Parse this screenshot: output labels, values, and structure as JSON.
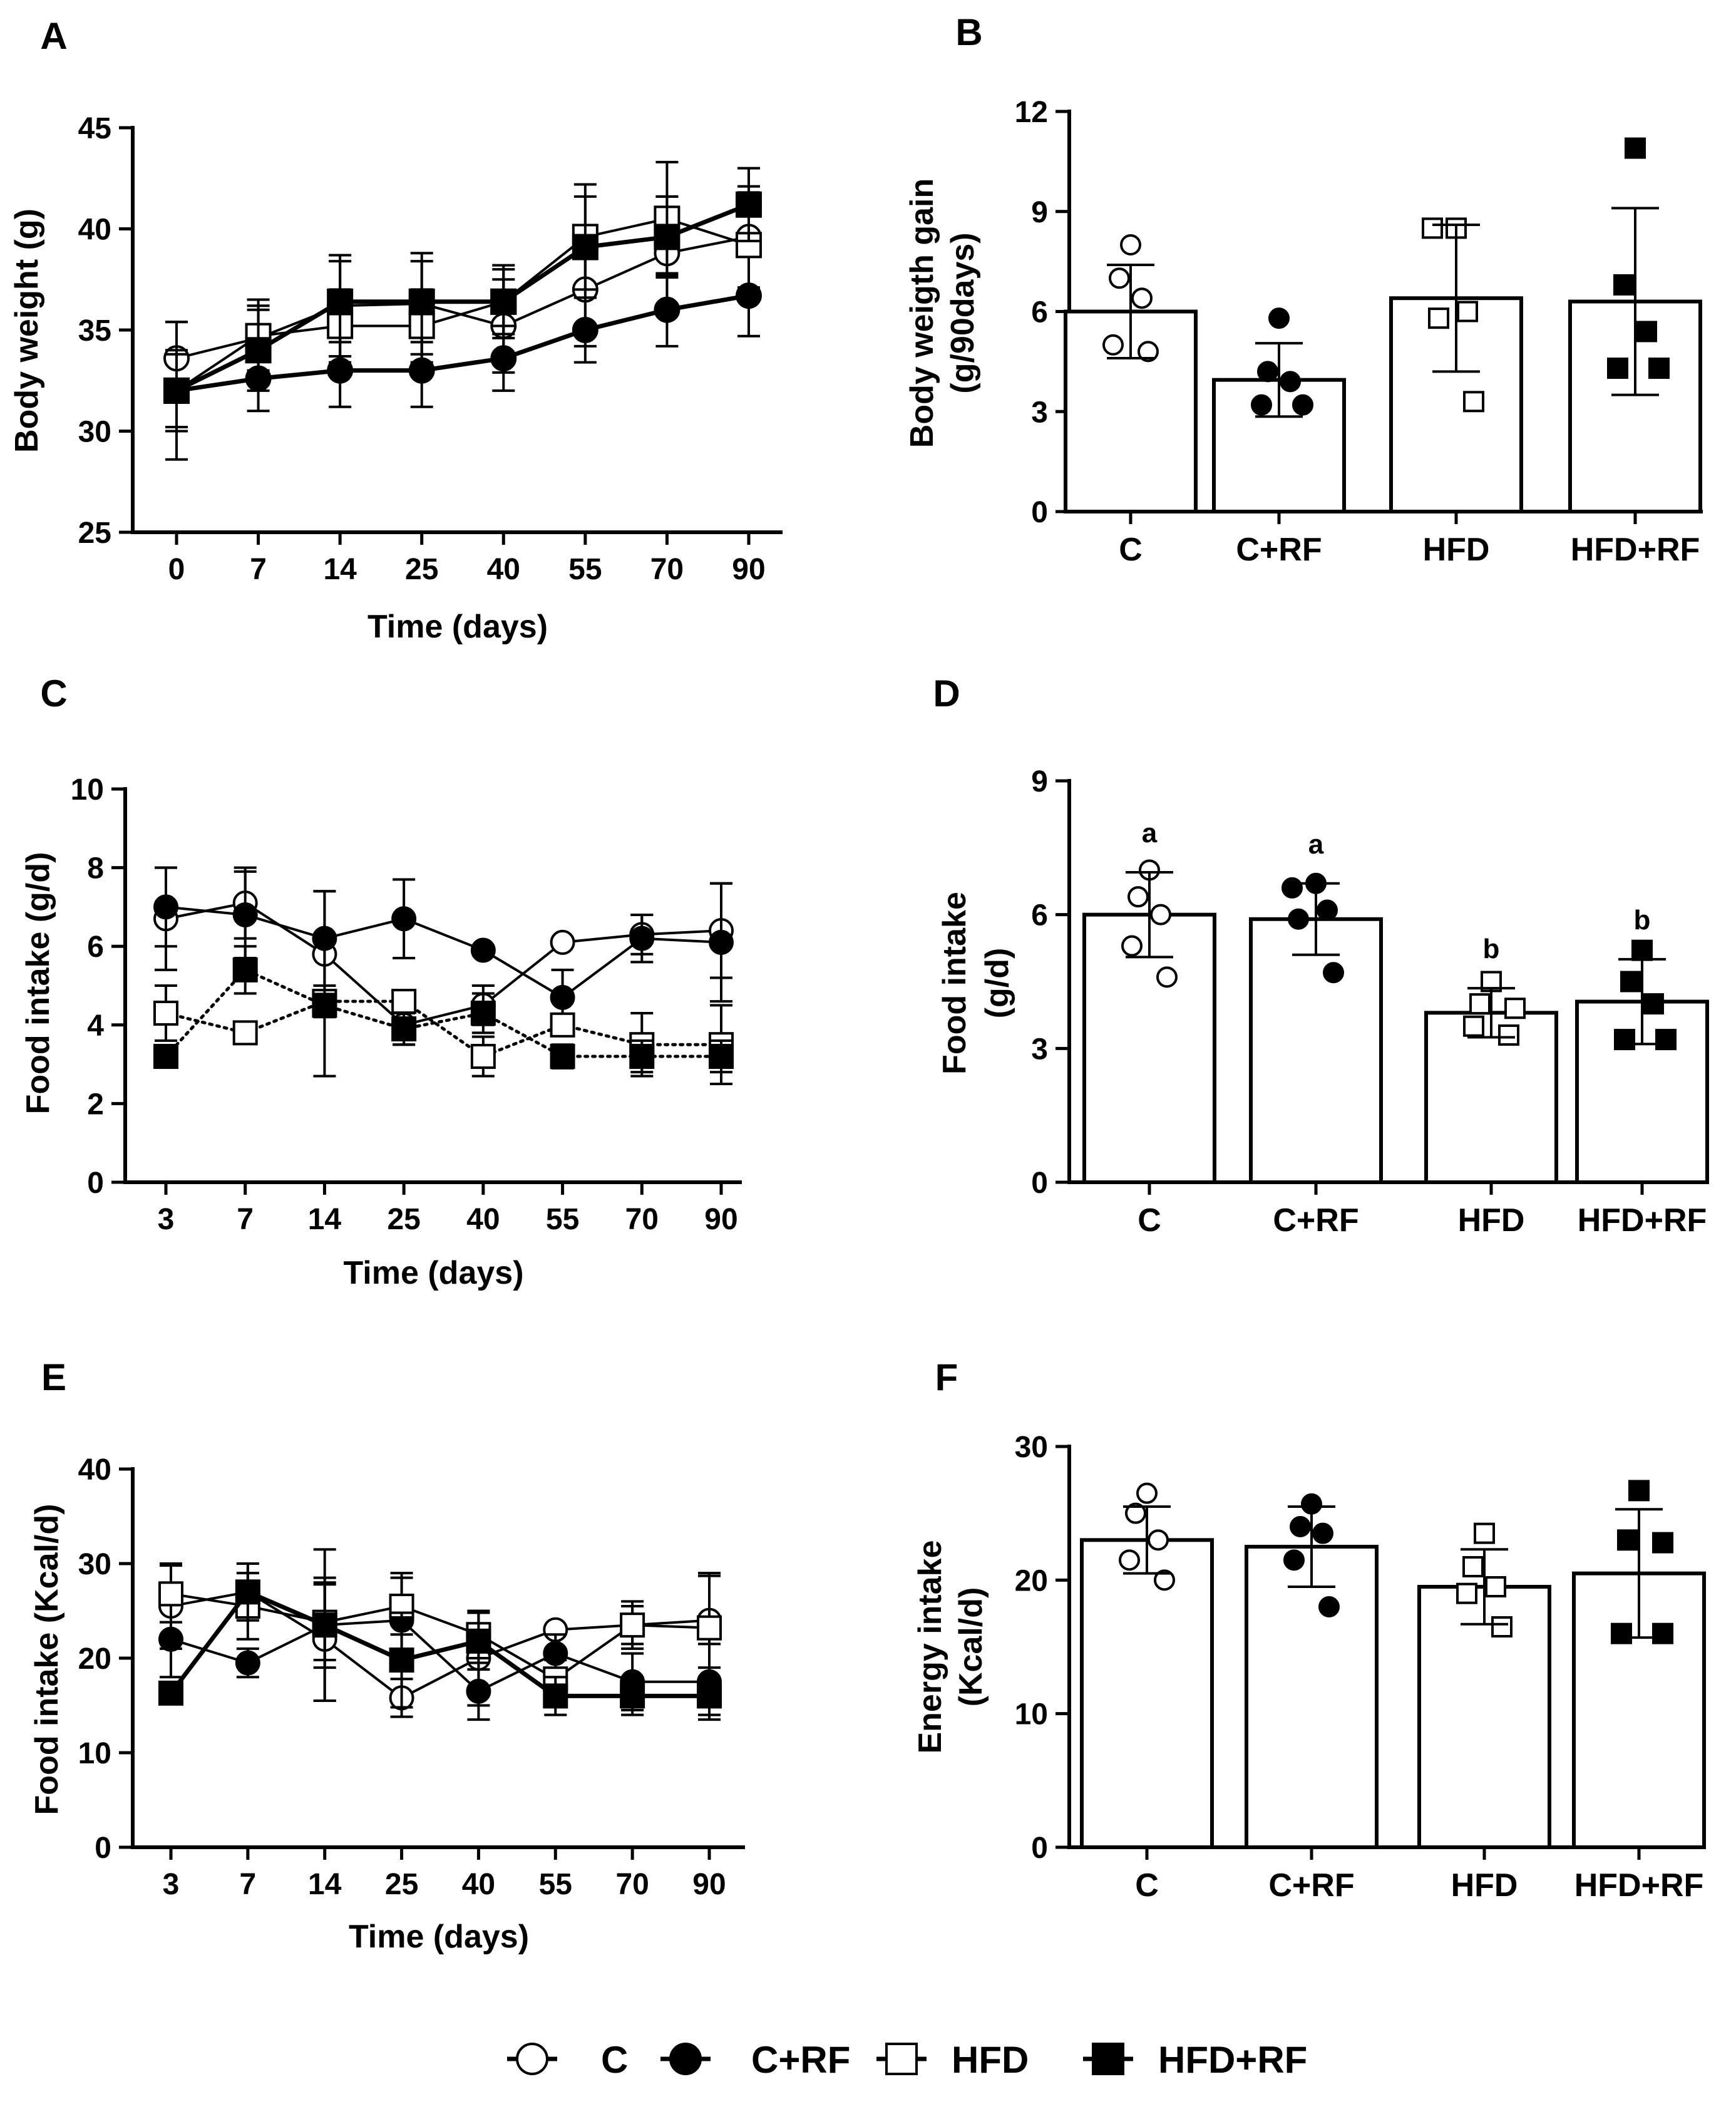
{
  "chart_data": [
    {
      "id": "A",
      "panel_label": "A",
      "type": "line",
      "ylabel": "Body weight (g)",
      "xlabel": "Time (days)",
      "categories": [
        "0",
        "7",
        "14",
        "25",
        "40",
        "55",
        "70",
        "90"
      ],
      "ylim": [
        25,
        45
      ],
      "yticks": [
        25,
        30,
        35,
        40,
        45
      ],
      "series": [
        {
          "name": "C",
          "marker": "circle-open",
          "line": "solid",
          "values": [
            33.6,
            34.6,
            36.2,
            36.3,
            35.2,
            37.0,
            38.8,
            39.6
          ],
          "err": [
            1.8,
            1.6,
            2.5,
            2.5,
            2.3,
            2.8,
            2.8,
            2.5
          ]
        },
        {
          "name": "C+RF",
          "marker": "circle-filled",
          "line": "solid-thick",
          "values": [
            32.0,
            32.6,
            33.0,
            33.0,
            33.6,
            35.0,
            36.0,
            36.7
          ],
          "err": [
            1.8,
            1.6,
            1.8,
            1.8,
            1.6,
            1.6,
            1.8,
            2.0
          ]
        },
        {
          "name": "HFD",
          "marker": "square-open",
          "line": "solid",
          "values": [
            32.0,
            34.7,
            35.2,
            35.2,
            36.4,
            39.6,
            40.5,
            39.2
          ],
          "err": [
            2.0,
            1.8,
            1.8,
            1.8,
            1.6,
            2.6,
            2.8,
            2.6
          ]
        },
        {
          "name": "HFD+RF",
          "marker": "square-filled",
          "line": "solid-thick",
          "values": [
            32.0,
            34.0,
            36.4,
            36.4,
            36.4,
            39.1,
            39.6,
            41.2
          ],
          "err": [
            3.4,
            2.0,
            2.0,
            2.0,
            1.8,
            2.5,
            2.0,
            1.8
          ]
        }
      ]
    },
    {
      "id": "B",
      "panel_label": "B",
      "type": "bar",
      "ylabel": [
        "Body weigth gain",
        "(g/90days)"
      ],
      "categories": [
        "C",
        "C+RF",
        "HFD",
        "HFD+RF"
      ],
      "ylim": [
        0,
        12
      ],
      "yticks": [
        0,
        3,
        6,
        9,
        12
      ],
      "values": [
        6.0,
        3.95,
        6.4,
        6.3
      ],
      "err": [
        1.4,
        1.1,
        2.2,
        2.8
      ],
      "markers": [
        "circle-open",
        "circle-filled",
        "square-open",
        "square-filled"
      ],
      "points": [
        [
          8.0,
          7.0,
          6.4,
          5.0,
          4.8
        ],
        [
          5.8,
          4.2,
          3.9,
          3.2,
          3.2
        ],
        [
          8.5,
          8.5,
          6.0,
          5.8,
          3.3
        ],
        [
          10.9,
          6.8,
          5.4,
          4.3,
          4.3
        ]
      ],
      "annotations": [
        "",
        "",
        "",
        ""
      ]
    },
    {
      "id": "C",
      "panel_label": "C",
      "type": "line",
      "ylabel": "Food intake (g/d)",
      "xlabel": "Time (days)",
      "categories": [
        "3",
        "7",
        "14",
        "25",
        "40",
        "55",
        "70",
        "90"
      ],
      "ylim": [
        0,
        10
      ],
      "yticks": [
        0,
        2,
        4,
        6,
        8,
        10
      ],
      "series": [
        {
          "name": "C",
          "marker": "circle-open",
          "line": "solid",
          "values": [
            6.7,
            7.1,
            5.8,
            4.0,
            4.5,
            6.1,
            6.3,
            6.4
          ],
          "err": [
            1.3,
            0.9,
            1.6,
            0.5,
            0.5,
            0.0,
            0.5,
            1.2
          ]
        },
        {
          "name": "C+RF",
          "marker": "circle-filled",
          "line": "solid",
          "values": [
            7.0,
            6.8,
            6.2,
            6.7,
            5.9,
            4.7,
            6.2,
            6.1
          ],
          "err": [
            1.0,
            1.1,
            1.2,
            1.0,
            0.0,
            0.7,
            0.6,
            1.5
          ]
        },
        {
          "name": "HFD",
          "marker": "square-open",
          "line": "dotted",
          "values": [
            4.3,
            3.8,
            4.6,
            4.6,
            3.2,
            4.0,
            3.5,
            3.5
          ],
          "err": [
            0.7,
            0.0,
            0.0,
            0.0,
            0.5,
            0.2,
            0.8,
            1.0
          ]
        },
        {
          "name": "HFD+RF",
          "marker": "square-filled",
          "line": "dotted",
          "values": [
            3.2,
            5.4,
            4.5,
            3.9,
            4.3,
            3.2,
            3.2,
            3.2
          ],
          "err": [
            0.0,
            0.6,
            1.8,
            0.4,
            0.5,
            0.3,
            0.4,
            0.4
          ]
        }
      ]
    },
    {
      "id": "D",
      "panel_label": "D",
      "type": "bar",
      "ylabel": [
        "Food intake",
        "(g/d)"
      ],
      "categories": [
        "C",
        "C+RF",
        "HFD",
        "HFD+RF"
      ],
      "ylim": [
        0,
        9
      ],
      "yticks": [
        0,
        3,
        6,
        9
      ],
      "values": [
        6.0,
        5.9,
        3.8,
        4.05
      ],
      "err": [
        0.95,
        0.8,
        0.55,
        0.95
      ],
      "markers": [
        "circle-open",
        "circle-filled",
        "square-open",
        "square-filled"
      ],
      "points": [
        [
          7.0,
          6.4,
          6.0,
          5.3,
          4.6
        ],
        [
          6.7,
          6.6,
          6.1,
          5.9,
          4.7
        ],
        [
          4.5,
          4.0,
          3.9,
          3.5,
          3.3
        ],
        [
          5.2,
          4.5,
          4.0,
          3.2,
          3.2
        ]
      ],
      "annotations": [
        "a",
        "a",
        "b",
        "b"
      ]
    },
    {
      "id": "E",
      "panel_label": "E",
      "type": "line",
      "ylabel": "Food intake (Kcal/d)",
      "xlabel": "Time (days)",
      "categories": [
        "3",
        "7",
        "14",
        "25",
        "40",
        "55",
        "70",
        "90"
      ],
      "ylim": [
        0,
        40
      ],
      "yticks": [
        0,
        10,
        20,
        30,
        40
      ],
      "series": [
        {
          "name": "C",
          "marker": "circle-open",
          "line": "solid",
          "values": [
            25.5,
            27.0,
            22.0,
            15.8,
            20.0,
            23.0,
            23.5,
            24.0
          ],
          "err": [
            4.5,
            3.0,
            6.5,
            2.0,
            5.0,
            0.0,
            2.0,
            5.0
          ]
        },
        {
          "name": "C+RF",
          "marker": "circle-filled",
          "line": "solid",
          "values": [
            22.0,
            19.5,
            23.5,
            24.0,
            16.5,
            20.5,
            17.5,
            17.5
          ],
          "err": [
            4.0,
            1.5,
            8.0,
            5.0,
            3.0,
            2.0,
            3.0,
            4.0
          ]
        },
        {
          "name": "HFD",
          "marker": "square-open",
          "line": "solid",
          "values": [
            26.8,
            25.5,
            23.8,
            25.5,
            22.5,
            17.8,
            23.5,
            23.2
          ],
          "err": [
            3.0,
            3.5,
            4.0,
            3.0,
            2.5,
            2.0,
            2.5,
            5.5
          ]
        },
        {
          "name": "HFD+RF",
          "marker": "square-filled",
          "line": "solid-thick",
          "values": [
            16.3,
            27.0,
            23.5,
            19.8,
            21.8,
            16.0,
            16.0,
            16.0
          ],
          "err": [
            0.0,
            3.0,
            4.5,
            5.0,
            3.0,
            2.0,
            2.0,
            2.0
          ]
        }
      ]
    },
    {
      "id": "F",
      "panel_label": "F",
      "type": "bar",
      "ylabel": [
        "Energy intake",
        "(Kcal/d)"
      ],
      "categories": [
        "C",
        "C+RF",
        "HFD",
        "HFD+RF"
      ],
      "ylim": [
        0,
        30
      ],
      "yticks": [
        0,
        10,
        20,
        30
      ],
      "values": [
        23.0,
        22.5,
        19.5,
        20.5
      ],
      "err": [
        2.5,
        3.0,
        2.8,
        4.8
      ],
      "markers": [
        "circle-open",
        "circle-filled",
        "square-open",
        "square-filled"
      ],
      "points": [
        [
          26.5,
          25.0,
          23.0,
          21.5,
          20.0
        ],
        [
          25.7,
          24.0,
          23.5,
          21.5,
          18.0
        ],
        [
          23.5,
          21.0,
          19.5,
          19.0,
          16.5
        ],
        [
          26.7,
          23.0,
          22.8,
          16.0,
          16.0
        ]
      ],
      "annotations": [
        "",
        "",
        "",
        ""
      ]
    }
  ],
  "legend": [
    {
      "name": "C",
      "marker": "circle-open"
    },
    {
      "name": "C+RF",
      "marker": "circle-filled"
    },
    {
      "name": "HFD",
      "marker": "square-open"
    },
    {
      "name": "HFD+RF",
      "marker": "square-filled"
    }
  ]
}
